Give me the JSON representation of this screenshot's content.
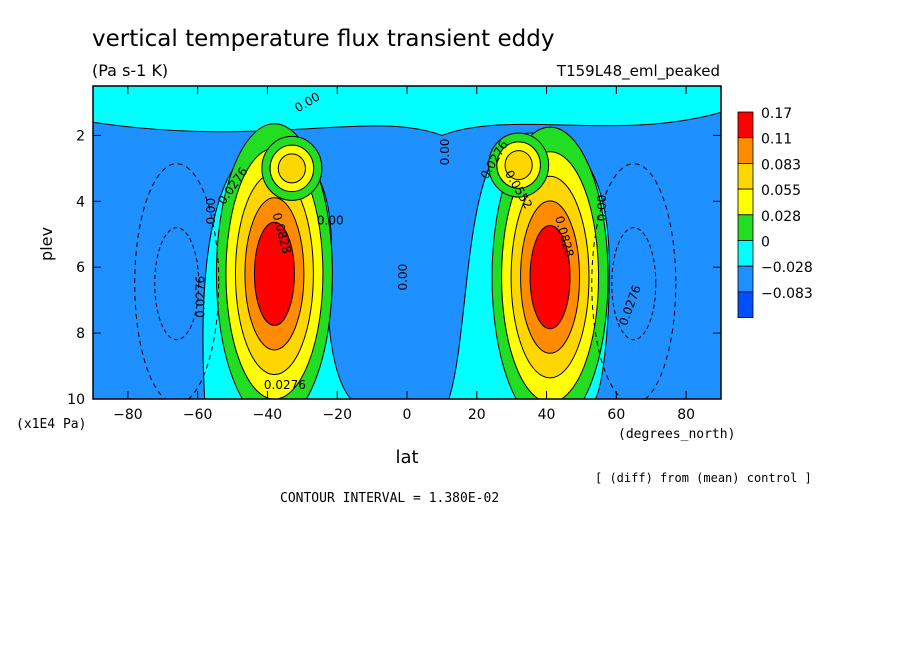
{
  "chart_data": {
    "type": "heatmap",
    "title": "vertical temperature flux transient eddy",
    "units": "(Pa s-1 K)",
    "experiment": "T159L48_eml_peaked",
    "xlabel": "lat",
    "x_units": "(degrees_north)",
    "ylabel": "plev",
    "y_units": "(x1E4 Pa)",
    "xlim": [
      -90,
      90
    ],
    "ylim": [
      10,
      0.5
    ],
    "x_ticks": [
      -80,
      -60,
      -40,
      -20,
      0,
      20,
      40,
      60,
      80
    ],
    "x_tick_labels": [
      "−80",
      "−60",
      "−40",
      "−20",
      "0",
      "20",
      "40",
      "60",
      "80"
    ],
    "y_ticks": [
      2,
      4,
      6,
      8,
      10
    ],
    "y_tick_labels": [
      "2",
      "4",
      "6",
      "8",
      "10"
    ],
    "contour_interval_text": "CONTOUR INTERVAL = 1.380E-02",
    "contour_interval": 0.0138,
    "diff_note": "[ (diff) from (mean) control ]",
    "legend": {
      "position": "right",
      "levels": [
        0.17,
        0.11,
        0.083,
        0.055,
        0.028,
        0,
        -0.028,
        -0.083
      ],
      "labels": [
        "0.17",
        "0.11",
        "0.083",
        "0.055",
        "0.028",
        "0",
        "−0.028",
        "−0.083"
      ],
      "colors": [
        "#ff0000",
        "#ff8c00",
        "#ffd700",
        "#ffff00",
        "#22dd22",
        "#00ffff",
        "#1e90ff",
        "#0050ff"
      ]
    },
    "features": [
      {
        "lat": -38,
        "plev": 6.2,
        "value": 0.17
      },
      {
        "lat": -33,
        "plev": 3.0,
        "value": 0.083
      },
      {
        "lat": 41,
        "plev": 6.3,
        "value": 0.17
      },
      {
        "lat": 32,
        "plev": 2.9,
        "value": 0.083
      },
      {
        "lat": -66,
        "plev": 6.5,
        "value": -0.028
      },
      {
        "lat": 65,
        "plev": 6.5,
        "value": -0.028
      }
    ],
    "contour_labels": [
      {
        "text": "0.00",
        "lat": -28,
        "plev": 1.1,
        "rotate": -30
      },
      {
        "text": "0.0276",
        "lat": -49,
        "plev": 3.6,
        "rotate": -55
      },
      {
        "text": "0.00",
        "lat": -55,
        "plev": 4.3,
        "rotate": -90
      },
      {
        "text": "0.0276",
        "lat": -58,
        "plev": 6.9,
        "rotate": -90
      },
      {
        "text": "0.0828",
        "lat": -37,
        "plev": 5.0,
        "rotate": 75
      },
      {
        "text": "0.00",
        "lat": -22,
        "plev": 4.7,
        "rotate": 0
      },
      {
        "text": "0.00",
        "lat": 0,
        "plev": 6.3,
        "rotate": -90
      },
      {
        "text": "0.00",
        "lat": 12,
        "plev": 2.5,
        "rotate": -90
      },
      {
        "text": "0.0276",
        "lat": 26,
        "plev": 2.8,
        "rotate": -60
      },
      {
        "text": "0.0552",
        "lat": 31,
        "plev": 3.7,
        "rotate": 60
      },
      {
        "text": "0.0828",
        "lat": 44,
        "plev": 5.1,
        "rotate": 75
      },
      {
        "text": "0.00",
        "lat": 57,
        "plev": 4.2,
        "rotate": -90
      },
      {
        "text": "0.0276",
        "lat": 65,
        "plev": 7.2,
        "rotate": -70
      },
      {
        "text": "0.0276",
        "lat": -35,
        "plev": 9.7,
        "rotate": 0
      }
    ]
  }
}
